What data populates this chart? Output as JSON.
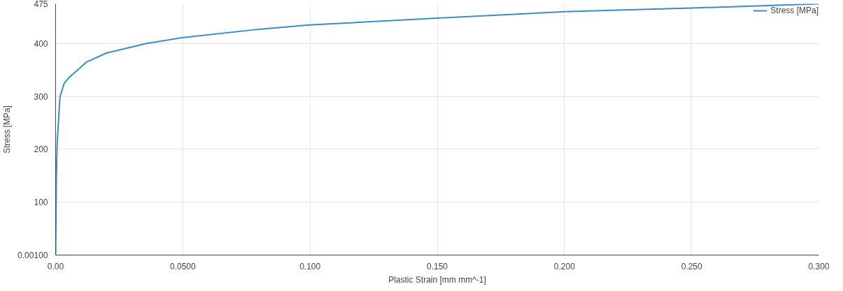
{
  "chart_data": {
    "type": "line",
    "xlabel": "Plastic Strain [mm mm^-1]",
    "ylabel": "Stress [MPa]",
    "xlim": [
      0,
      0.3
    ],
    "ylim": [
      0.001,
      475
    ],
    "xticks": [
      {
        "value": 0,
        "label": "0.00"
      },
      {
        "value": 0.05,
        "label": "0.0500"
      },
      {
        "value": 0.1,
        "label": "0.100"
      },
      {
        "value": 0.15,
        "label": "0.150"
      },
      {
        "value": 0.2,
        "label": "0.200"
      },
      {
        "value": 0.25,
        "label": "0.250"
      },
      {
        "value": 0.3,
        "label": "0.300"
      }
    ],
    "yticks": [
      {
        "value": 0.001,
        "label": "0.00100"
      },
      100,
      200,
      300,
      400,
      475
    ],
    "grid": true,
    "legend": "top right",
    "series": [
      {
        "name": "Stress [MPa]",
        "color": "#3b8bc9",
        "x": [
          0,
          0.0003,
          0.0006,
          0.0017,
          0.0033,
          0.0053,
          0.008,
          0.0122,
          0.02,
          0.0358,
          0.0497,
          0.08,
          0.0997,
          0.15,
          0.2,
          0.25,
          0.3
        ],
        "values": [
          0.001,
          150,
          211,
          299,
          324,
          336,
          347,
          365,
          382,
          400,
          411,
          427,
          435,
          448,
          460,
          467,
          475
        ]
      }
    ]
  }
}
